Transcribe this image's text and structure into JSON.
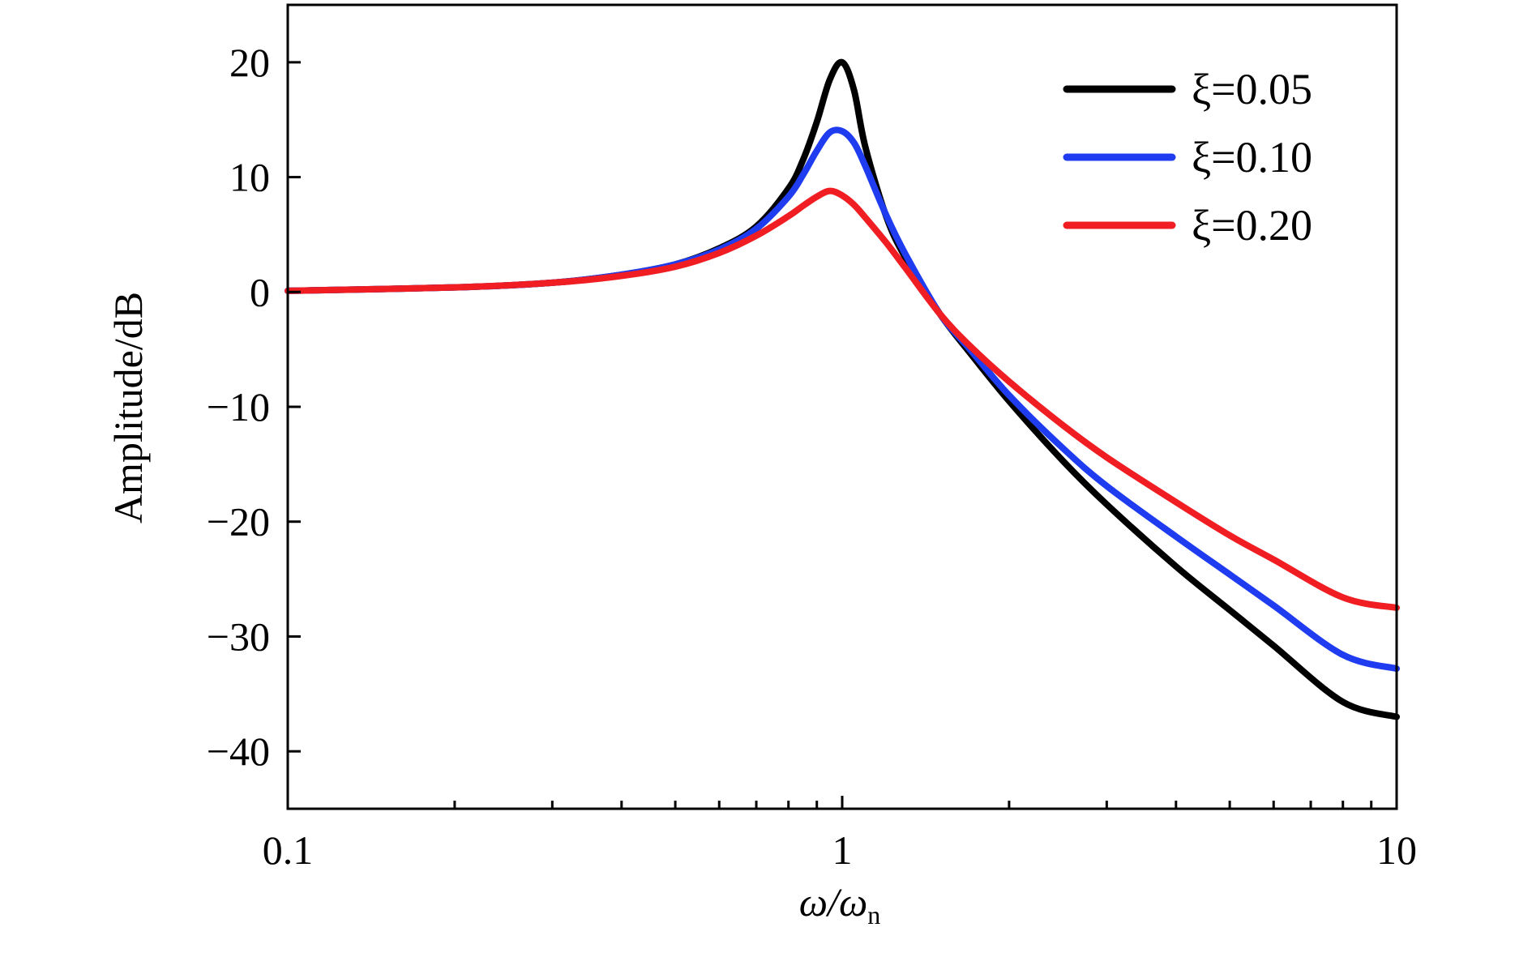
{
  "chart_data": {
    "type": "line",
    "title": "",
    "xlabel": {
      "main": "ω/ω",
      "subscript": "n"
    },
    "ylabel": "Amplitude/dB",
    "xscale": "log",
    "xlim": [
      0.1,
      10
    ],
    "ylim": [
      -45,
      25
    ],
    "xticks": [
      0.1,
      1,
      10
    ],
    "xtick_labels": [
      "0.1",
      "1",
      "10"
    ],
    "yticks": [
      20,
      10,
      0,
      -10,
      -20,
      -30,
      -40
    ],
    "ytick_labels": [
      "20",
      "10",
      "0",
      "−10",
      "−20",
      "−30",
      "−40"
    ],
    "grid": false,
    "legend_position": "top-right",
    "x": [
      0.1,
      0.2,
      0.3,
      0.4,
      0.5,
      0.6,
      0.7,
      0.8,
      0.85,
      0.9,
      0.95,
      1.0,
      1.05,
      1.1,
      1.2,
      1.3,
      1.5,
      1.7,
      2,
      2.5,
      3,
      4,
      5,
      6,
      8,
      10
    ],
    "series": [
      {
        "name": "ξ=0.05",
        "color": "#000000",
        "values": [
          0.1,
          0.4,
          0.8,
          1.5,
          2.4,
          3.8,
          5.7,
          9.0,
          11.5,
          14.8,
          18.5,
          20.0,
          17.6,
          12.7,
          6.6,
          3.0,
          -1.9,
          -5.3,
          -9.5,
          -14.7,
          -18.5,
          -23.9,
          -27.7,
          -30.8,
          -35.7,
          -37.0
        ]
      },
      {
        "name": "ξ=0.10",
        "color": "#1f3cf0",
        "values": [
          0.1,
          0.4,
          0.8,
          1.5,
          2.4,
          3.7,
          5.5,
          8.3,
          10.2,
          12.3,
          13.9,
          14.0,
          13.0,
          11.0,
          6.7,
          3.3,
          -1.9,
          -5.0,
          -9.0,
          -13.6,
          -16.9,
          -21.3,
          -24.6,
          -27.3,
          -31.6,
          -32.8
        ]
      },
      {
        "name": "ξ=0.20",
        "color": "#f01e23",
        "values": [
          0.1,
          0.4,
          0.8,
          1.4,
          2.2,
          3.4,
          4.9,
          6.6,
          7.5,
          8.3,
          8.8,
          8.4,
          7.6,
          6.5,
          4.3,
          2.1,
          -1.9,
          -4.7,
          -7.8,
          -11.6,
          -14.4,
          -18.3,
          -21.2,
          -23.3,
          -26.6,
          -27.5
        ]
      }
    ]
  }
}
